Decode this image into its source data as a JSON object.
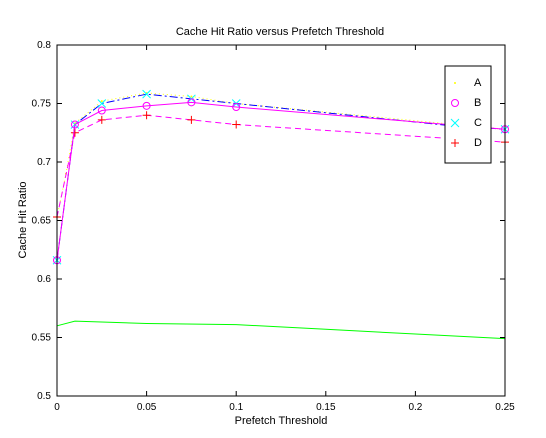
{
  "chart_data": {
    "type": "line",
    "title": "Cache Hit Ratio versus Prefetch Threshold",
    "xlabel": "Prefetch Threshold",
    "ylabel": "Cache Hit Ratio",
    "xlim": [
      0,
      0.25
    ],
    "ylim": [
      0.5,
      0.8
    ],
    "xticks": [
      "0",
      "0.05",
      "0.1",
      "0.15",
      "0.2",
      "0.25"
    ],
    "yticks": [
      "0.5",
      "0.55",
      "0.6",
      "0.65",
      "0.7",
      "0.75",
      "0.8"
    ],
    "grid": false,
    "legend_position": "top-right",
    "series": [
      {
        "name": "A",
        "color": "#ffff00",
        "line_style": "dotted",
        "marker": "point",
        "x": [
          0,
          0.005,
          0.01,
          0.025,
          0.05,
          0.075,
          0.1,
          0.25
        ],
        "y": [
          0.653,
          0.69,
          0.733,
          0.752,
          0.759,
          0.756,
          0.75,
          0.728
        ]
      },
      {
        "name": "B",
        "color": "#ff00ff",
        "line_style": "solid",
        "marker": "circle",
        "x": [
          0,
          0.01,
          0.025,
          0.05,
          0.075,
          0.1,
          0.25
        ],
        "y": [
          0.616,
          0.732,
          0.744,
          0.748,
          0.751,
          0.747,
          0.728
        ]
      },
      {
        "name": "C",
        "color": "#00ffff",
        "line_style": "dashdot",
        "line_color": "#0000ff",
        "marker": "x",
        "x": [
          0,
          0.01,
          0.025,
          0.05,
          0.075,
          0.1,
          0.22,
          0.25
        ],
        "y": [
          0.616,
          0.732,
          0.75,
          0.758,
          0.754,
          0.75,
          0.731,
          0.728
        ]
      },
      {
        "name": "D",
        "color": "#ff0000",
        "line_style": "dashed",
        "line_color": "#ff00ff",
        "marker": "plus",
        "x": [
          0,
          0.01,
          0.025,
          0.05,
          0.075,
          0.1,
          0.25
        ],
        "y": [
          0.653,
          0.725,
          0.736,
          0.74,
          0.736,
          0.732,
          0.717
        ]
      },
      {
        "color": "#00ff00",
        "line_style": "solid",
        "marker": "none",
        "x": [
          0,
          0.01,
          0.05,
          0.1,
          0.15,
          0.2,
          0.25
        ],
        "y": [
          0.56,
          0.564,
          0.562,
          0.561,
          0.557,
          0.553,
          0.549
        ]
      }
    ]
  }
}
